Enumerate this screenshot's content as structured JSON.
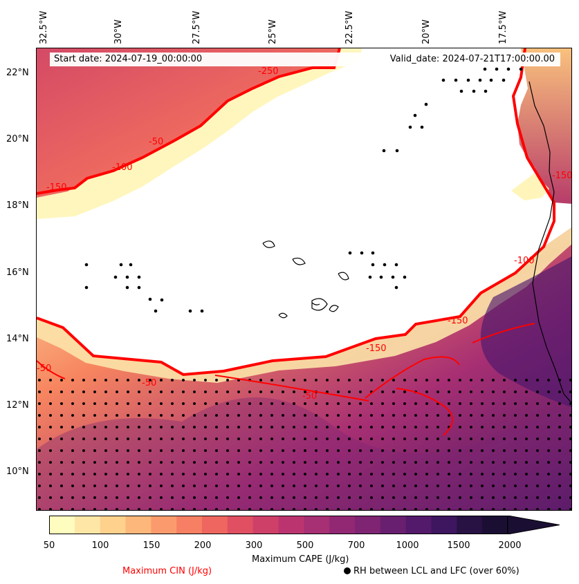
{
  "map": {
    "start_date": "Start date: 2024-07-19_00:00:00",
    "valid_date": "Valid_date: 2024-07-21T17:00:00.00",
    "top_labels": [
      "32.5°W",
      "30°W",
      "27.5°W",
      "25°W",
      "22.5°W",
      "20°W",
      "17.5°W"
    ],
    "left_labels": [
      "22°N",
      "20°N",
      "18°N",
      "16°N",
      "14°N",
      "12°N",
      "10°N"
    ],
    "cin_labels": [
      "-250",
      "-50",
      "-100",
      "-150",
      "-150",
      "-150",
      "-50",
      "-50",
      "-100",
      "-150",
      "-50"
    ]
  },
  "colorbar": {
    "ticks": [
      "50",
      "100",
      "150",
      "200",
      "300",
      "500",
      "700",
      "1000",
      "1500",
      "2000"
    ],
    "title": "Maximum CAPE (J/kg)",
    "colors": [
      "#fffcbf",
      "#fee7a6",
      "#fed18d",
      "#fdb77a",
      "#fb9b6d",
      "#f77f63",
      "#ee665f",
      "#e05062",
      "#cf4069",
      "#bc346f",
      "#a72f73",
      "#922874",
      "#7e2473",
      "#691f70",
      "#53196a",
      "#3d165f",
      "#271243",
      "#1a0f33"
    ]
  },
  "legend": {
    "cin": "Maximum CIN (J/kg)",
    "rh": "RH between LCL and LFC (over 60%)"
  }
}
